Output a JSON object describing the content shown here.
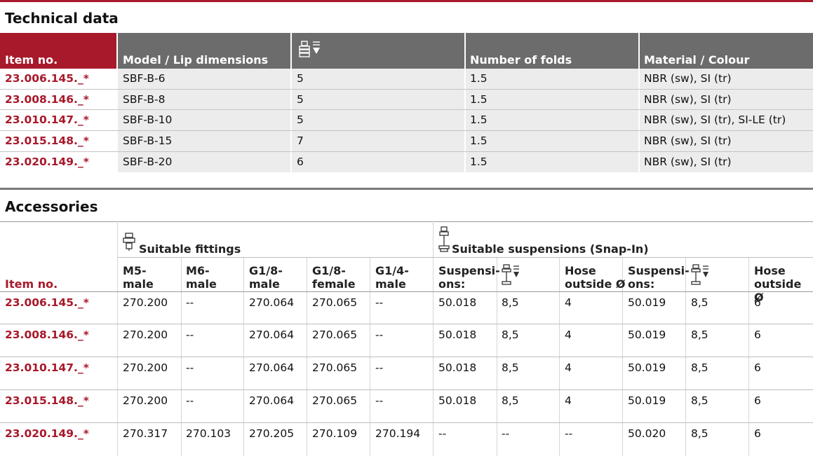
{
  "technical": {
    "title": "Technical data",
    "headers": [
      "Item no.",
      "Model / Lip dimensions",
      "Number of folds",
      "Material / Colour"
    ],
    "height_icon": "height-stroke-icon",
    "rows": [
      {
        "item": "23.006.145._*",
        "model": "SBF-B-6",
        "stroke": "5",
        "folds": "1.5",
        "material": "NBR (sw), SI (tr)"
      },
      {
        "item": "23.008.146._*",
        "model": "SBF-B-8",
        "stroke": "5",
        "folds": "1.5",
        "material": "NBR (sw), SI (tr)"
      },
      {
        "item": "23.010.147._*",
        "model": "SBF-B-10",
        "stroke": "5",
        "folds": "1.5",
        "material": "NBR (sw), SI (tr), SI-LE (tr)"
      },
      {
        "item": "23.015.148._*",
        "model": "SBF-B-15",
        "stroke": "7",
        "folds": "1.5",
        "material": "NBR (sw), SI (tr)"
      },
      {
        "item": "23.020.149._*",
        "model": "SBF-B-20",
        "stroke": "6",
        "folds": "1.5",
        "material": "NBR (sw), SI (tr)"
      }
    ]
  },
  "accessories": {
    "title": "Accessories",
    "item_header": "Item no.",
    "fittings_group": "Suitable fittings",
    "suspensions_group": "Suitable suspensions (Snap-In)",
    "col_m5": [
      "M5-",
      "male"
    ],
    "col_m6": [
      "M6-",
      "male"
    ],
    "col_g18m": [
      "G1/8-",
      "male"
    ],
    "col_g18f": [
      "G1/8-",
      "female"
    ],
    "col_g14m": [
      "G1/4-",
      "male"
    ],
    "col_susp": [
      "Suspensi-",
      "ons:"
    ],
    "col_hose": [
      "Hose",
      "outside Ø"
    ],
    "rows": [
      {
        "item": "23.006.145._*",
        "m5": "270.200",
        "m6": "--",
        "g18m": "270.064",
        "g18f": "270.065",
        "g14m": "--",
        "s1": "50.018",
        "h1": "8,5",
        "o1": "4",
        "s2": "50.019",
        "h2": "8,5",
        "o2": "6"
      },
      {
        "item": "23.008.146._*",
        "m5": "270.200",
        "m6": "--",
        "g18m": "270.064",
        "g18f": "270.065",
        "g14m": "--",
        "s1": "50.018",
        "h1": "8,5",
        "o1": "4",
        "s2": "50.019",
        "h2": "8,5",
        "o2": "6"
      },
      {
        "item": "23.010.147._*",
        "m5": "270.200",
        "m6": "--",
        "g18m": "270.064",
        "g18f": "270.065",
        "g14m": "--",
        "s1": "50.018",
        "h1": "8,5",
        "o1": "4",
        "s2": "50.019",
        "h2": "8,5",
        "o2": "6"
      },
      {
        "item": "23.015.148._*",
        "m5": "270.200",
        "m6": "--",
        "g18m": "270.064",
        "g18f": "270.065",
        "g14m": "--",
        "s1": "50.018",
        "h1": "8,5",
        "o1": "4",
        "s2": "50.019",
        "h2": "8,5",
        "o2": "6"
      },
      {
        "item": "23.020.149._*",
        "m5": "270.317",
        "m6": "270.103",
        "g18m": "270.205",
        "g18f": "270.109",
        "g14m": "270.194",
        "s1": "--",
        "h1": "--",
        "o1": "--",
        "s2": "50.020",
        "h2": "8,5",
        "o2": "6"
      }
    ]
  },
  "colors": {
    "brand_red": "#a8192b",
    "header_gray": "#6c6c6c",
    "row_gray": "#ececec"
  }
}
